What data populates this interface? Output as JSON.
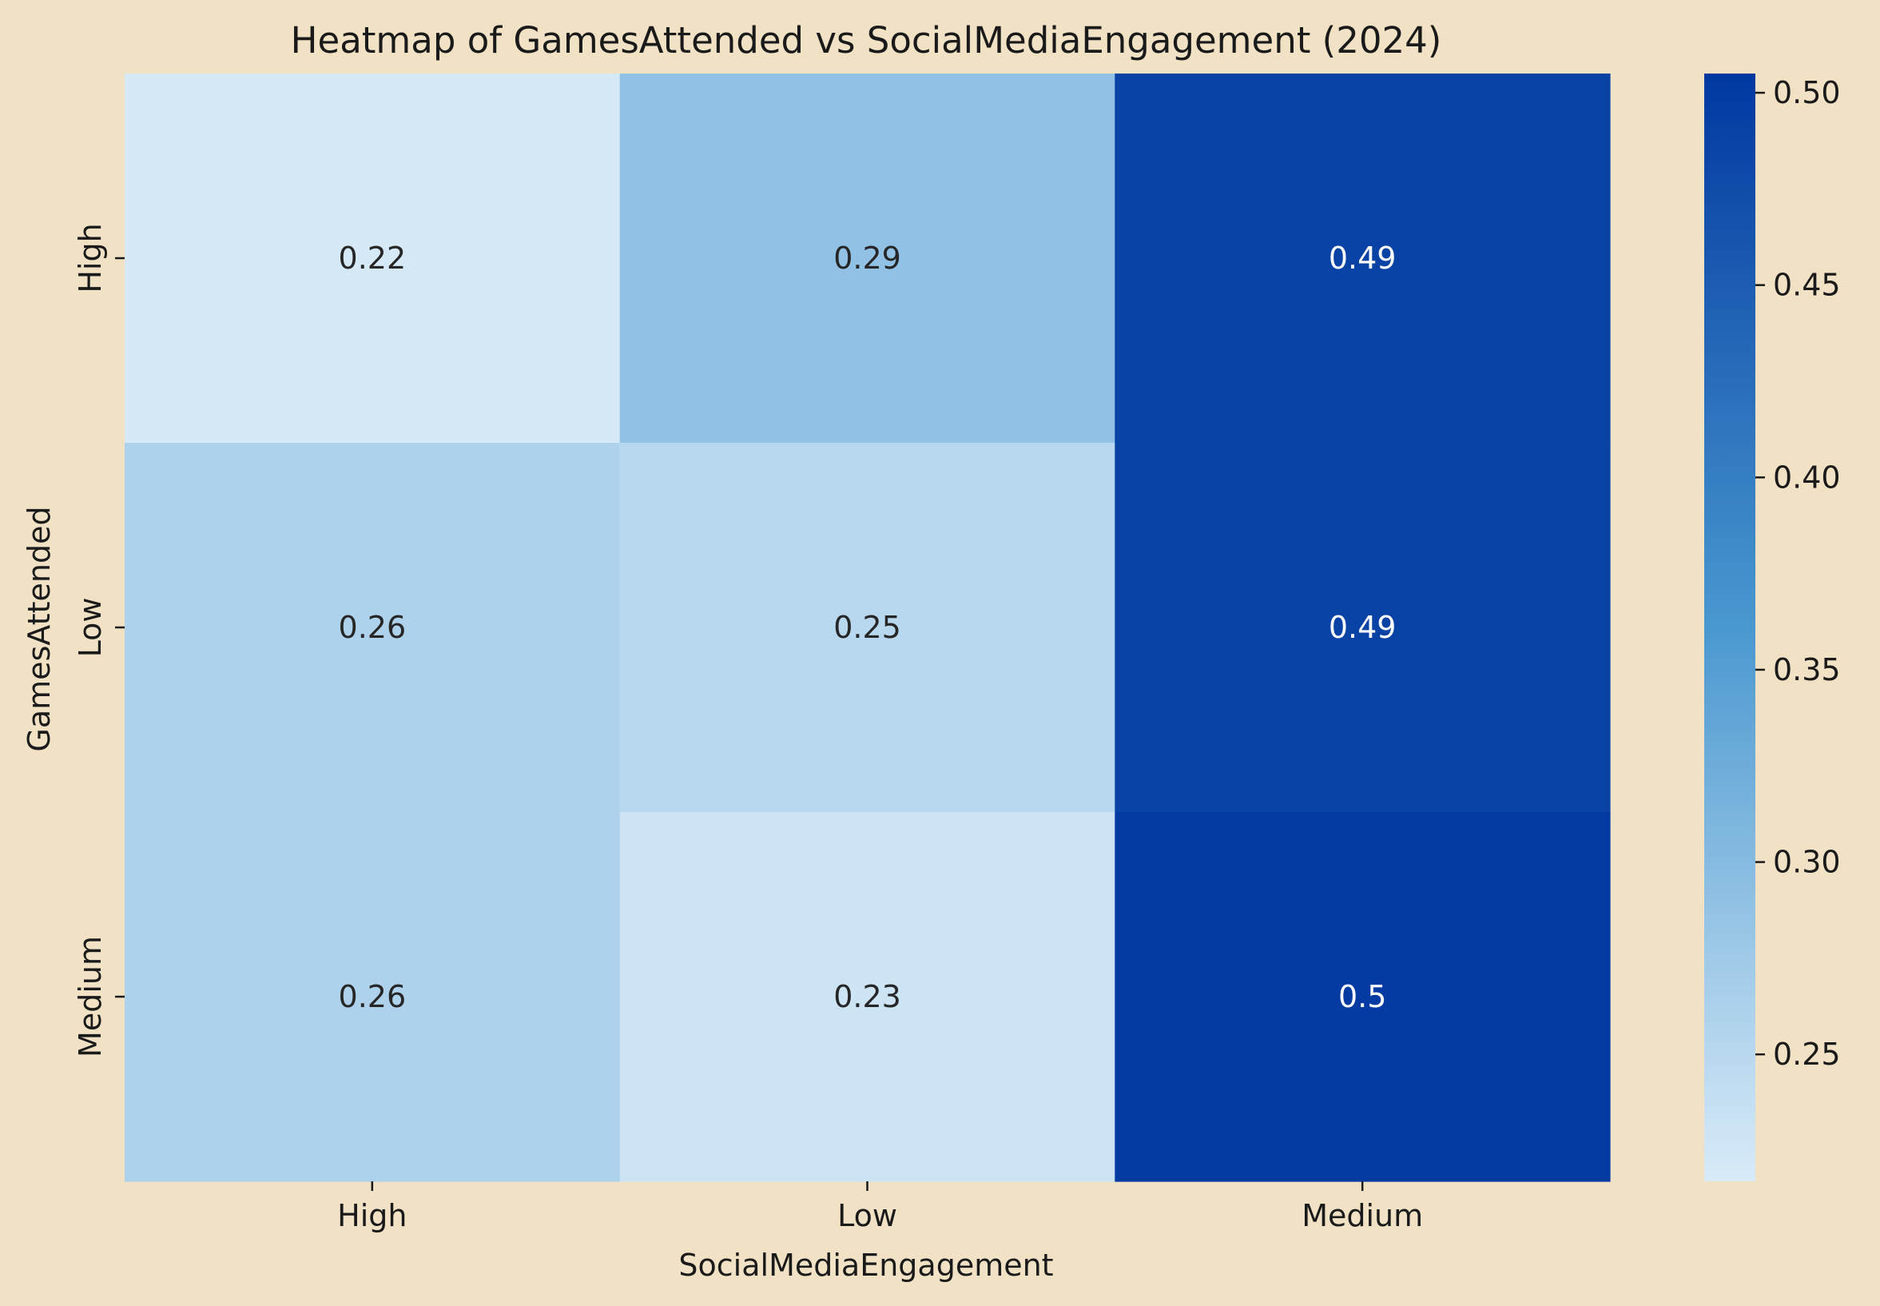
{
  "chart_data": {
    "type": "heatmap",
    "title": "Heatmap of GamesAttended vs SocialMediaEngagement (2024)",
    "xlabel": "SocialMediaEngagement",
    "ylabel": "GamesAttended",
    "x_categories": [
      "High",
      "Low",
      "Medium"
    ],
    "y_categories": [
      "High",
      "Low",
      "Medium"
    ],
    "values": [
      [
        0.22,
        0.29,
        0.49
      ],
      [
        0.26,
        0.25,
        0.49
      ],
      [
        0.26,
        0.23,
        0.5
      ]
    ],
    "value_labels": [
      [
        "0.22",
        "0.29",
        "0.49"
      ],
      [
        "0.26",
        "0.25",
        "0.49"
      ],
      [
        "0.26",
        "0.23",
        "0.5"
      ]
    ],
    "colorbar": {
      "range": [
        0.217,
        0.505
      ],
      "ticks": [
        0.25,
        0.3,
        0.35,
        0.4,
        0.45,
        0.5
      ],
      "tick_labels": [
        "0.25",
        "0.30",
        "0.35",
        "0.40",
        "0.45",
        "0.50"
      ]
    },
    "colormap": {
      "low": "#d9ebf8",
      "mid": "#4a98d0",
      "high": "#0038a0"
    },
    "background": "#f1e2c5",
    "grid": false,
    "legend": "colorbar-right"
  }
}
